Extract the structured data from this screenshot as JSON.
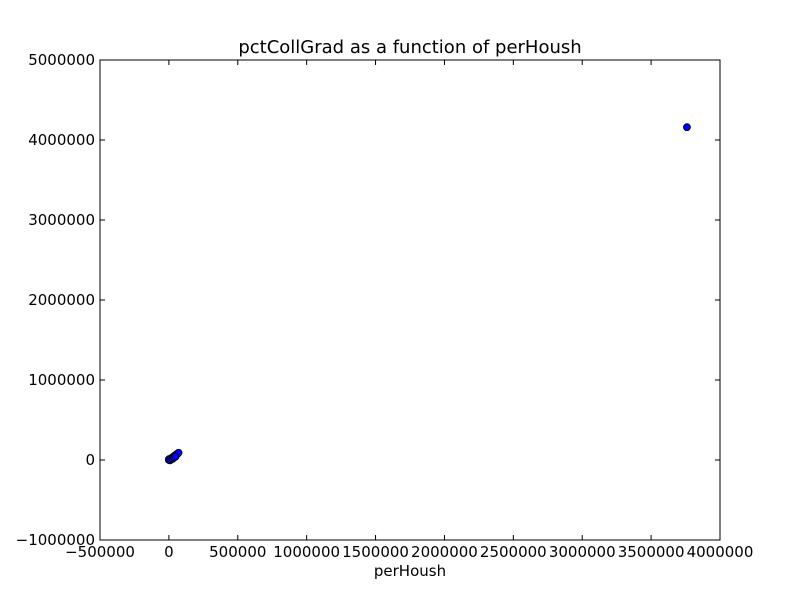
{
  "chart_data": {
    "type": "scatter",
    "title": "pctCollGrad as a function of perHoush",
    "xlabel": "perHoush",
    "ylabel": "",
    "xlim": [
      -500000,
      4000000
    ],
    "ylim": [
      -1000000,
      5000000
    ],
    "xticks": [
      -500000,
      0,
      500000,
      1000000,
      1500000,
      2000000,
      2500000,
      3000000,
      3500000,
      4000000
    ],
    "xtick_labels": [
      "−500000",
      "0",
      "500000",
      "1000000",
      "1500000",
      "2000000",
      "2500000",
      "3000000",
      "3500000",
      "4000000"
    ],
    "yticks": [
      -1000000,
      0,
      1000000,
      2000000,
      3000000,
      4000000,
      5000000
    ],
    "ytick_labels": [
      "−1000000",
      "0",
      "1000000",
      "2000000",
      "3000000",
      "4000000",
      "5000000"
    ],
    "grid": false,
    "marker_color": "#0000ff",
    "series": [
      {
        "x": [
          0,
          5000,
          10000,
          15000,
          20000,
          25000,
          30000,
          35000,
          40000,
          45000,
          50000,
          55000,
          60000,
          65000,
          70000,
          0,
          8000,
          18000,
          28000,
          38000,
          48000,
          3760000
        ],
        "y": [
          0,
          5000,
          12000,
          18000,
          25000,
          30000,
          38000,
          45000,
          50000,
          58000,
          63000,
          70000,
          75000,
          82000,
          90000,
          10000,
          -5000,
          8000,
          15000,
          30000,
          40000,
          4160000
        ]
      }
    ]
  }
}
